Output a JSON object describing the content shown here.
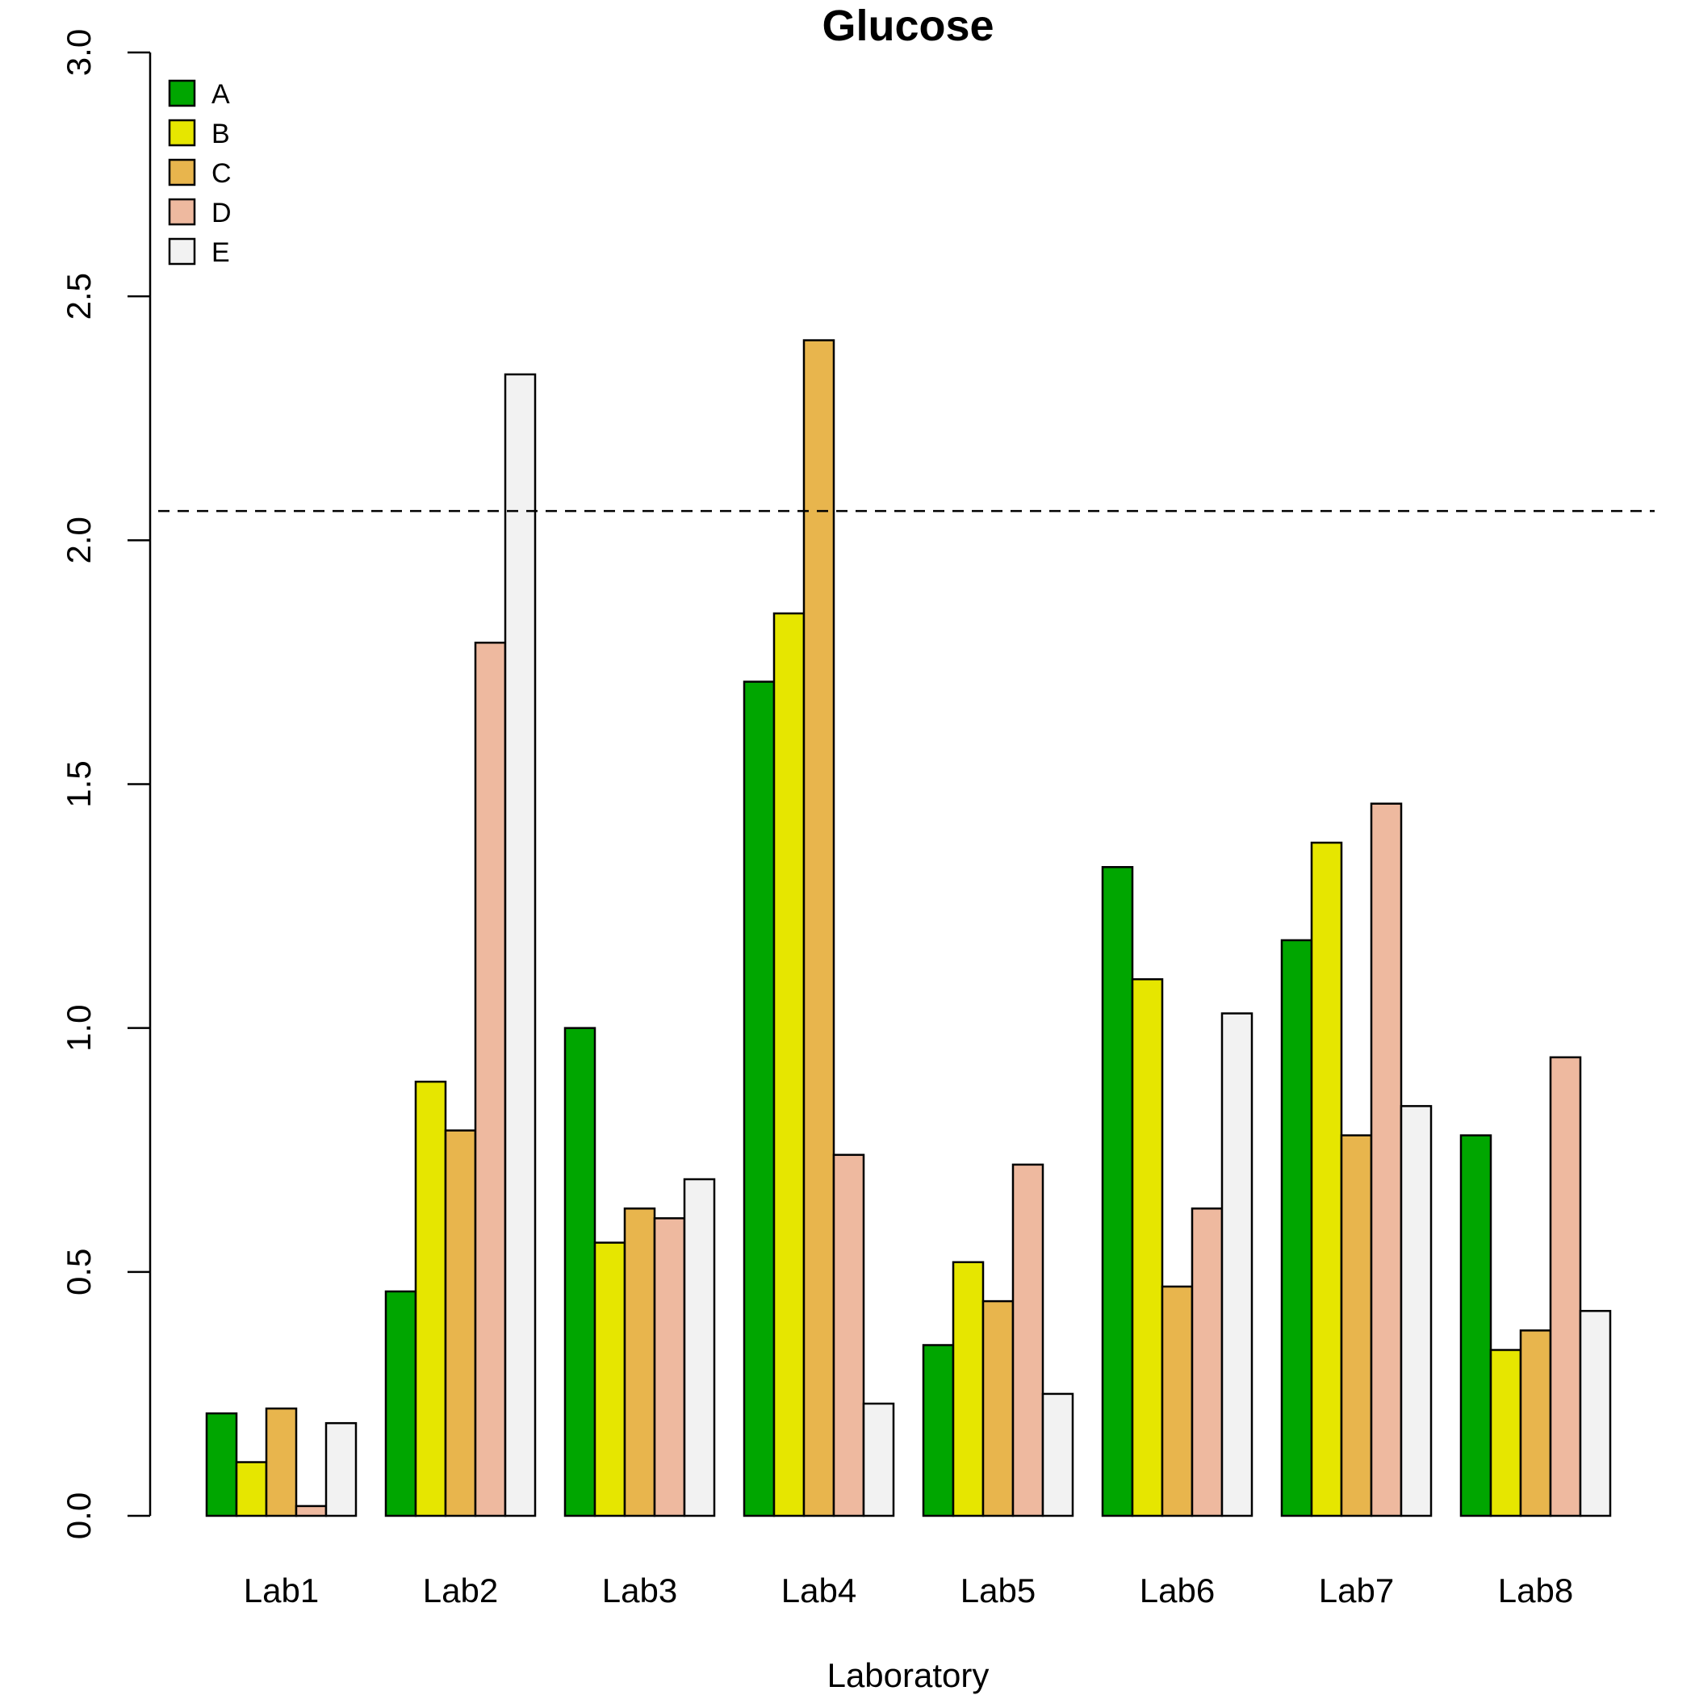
{
  "chart_data": {
    "type": "bar",
    "title": "Glucose",
    "xlabel": "Laboratory",
    "ylabel": "",
    "categories": [
      "Lab1",
      "Lab2",
      "Lab3",
      "Lab4",
      "Lab5",
      "Lab6",
      "Lab7",
      "Lab8"
    ],
    "series": [
      {
        "name": "A",
        "color": "#00a600",
        "values": [
          0.21,
          0.46,
          1.0,
          1.71,
          0.35,
          1.33,
          1.18,
          0.78
        ]
      },
      {
        "name": "B",
        "color": "#e6e600",
        "values": [
          0.11,
          0.89,
          0.56,
          1.85,
          0.52,
          1.1,
          1.38,
          0.34
        ]
      },
      {
        "name": "C",
        "color": "#e8b54d",
        "values": [
          0.22,
          0.79,
          0.63,
          2.41,
          0.44,
          0.47,
          0.78,
          0.38
        ]
      },
      {
        "name": "D",
        "color": "#eeb99f",
        "values": [
          0.02,
          1.79,
          0.61,
          0.74,
          0.72,
          0.63,
          1.46,
          0.94
        ]
      },
      {
        "name": "E",
        "color": "#f2f2f2",
        "values": [
          0.19,
          2.34,
          0.69,
          0.23,
          0.25,
          1.03,
          0.84,
          0.42
        ]
      }
    ],
    "ylim": [
      0,
      3.0
    ],
    "yticks": [
      "0.0",
      "0.5",
      "1.0",
      "1.5",
      "2.0",
      "2.5",
      "3.0"
    ],
    "reference_line": {
      "y": 2.06,
      "style": "dashed"
    },
    "legend_position": "top-left",
    "grid": false
  }
}
